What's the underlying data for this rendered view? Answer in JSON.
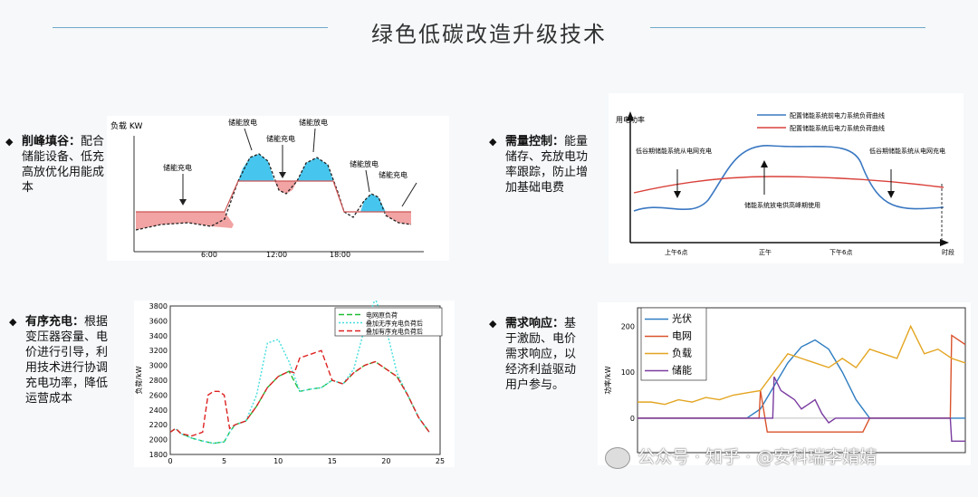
{
  "page": {
    "title": "绿色低碳改造升级技术"
  },
  "items": [
    {
      "id": "peak",
      "heading": "削峰填谷：",
      "body": "配合储能设备、低充高放优化用能成本"
    },
    {
      "id": "demand",
      "heading": "需量控制：",
      "body": "能量储存、充放电功率跟踪，防止增加基础电费"
    },
    {
      "id": "orderly",
      "heading": "有序充电：",
      "body": "根据变压器容量、电价进行引导，利用技术进行协调充电功率，降低运营成本"
    },
    {
      "id": "response",
      "heading": "需求响应：",
      "body": "基于激励、电价需求响应，以经济利益驱动用户参与。"
    }
  ],
  "fig1": {
    "ylabel": "负载 KW",
    "labels": [
      "储能充电",
      "储能放电",
      "储能充电",
      "储能放电",
      "储能放电",
      "储能充电"
    ],
    "xticks": [
      "6:00",
      "12:00",
      "18:00"
    ]
  },
  "fig2": {
    "ylabel": "用电功率",
    "legend": [
      "配置储能系统前电力系统负荷曲线",
      "配置储能系统后电力系统负荷曲线"
    ],
    "notes": [
      "低谷期储能系统从电网充电",
      "储能系统放电供高峰期使用",
      "低谷期储能系统从电网充电"
    ],
    "xticks": [
      "上午6点",
      "正午",
      "下午6点"
    ],
    "xlabel": "时段",
    "colors": {
      "before": "#3a78c2",
      "after": "#d9413a"
    }
  },
  "chart_data": [
    {
      "type": "line",
      "title": "",
      "ylabel": "负荷/kW",
      "xlim": [
        0,
        25
      ],
      "ylim": [
        1800,
        3800
      ],
      "xticks": [
        0,
        5,
        10,
        15,
        20,
        25
      ],
      "yticks": [
        1800,
        2000,
        2200,
        2400,
        2600,
        2800,
        3000,
        3200,
        3400,
        3600,
        3800
      ],
      "legend_position": "top-right",
      "series": [
        {
          "name": "电网原负荷",
          "color": "#22bb33",
          "dash": "6,3",
          "x": [
            0,
            0.5,
            1,
            2,
            3,
            4,
            5,
            5.5,
            6,
            7,
            8,
            9,
            10,
            11,
            12,
            13,
            14,
            15,
            16,
            17,
            18,
            19,
            20,
            21,
            22,
            23,
            24
          ],
          "y": [
            2100,
            2150,
            2080,
            2020,
            1980,
            1950,
            1970,
            2100,
            2200,
            2250,
            2450,
            2700,
            2850,
            2920,
            2650,
            2680,
            2700,
            2800,
            2750,
            2900,
            3000,
            3050,
            2950,
            2850,
            2600,
            2300,
            2100
          ]
        },
        {
          "name": "叠加无序充电负荷后",
          "color": "#44dddd",
          "dash": "2,2",
          "x": [
            0,
            0.5,
            1,
            2,
            3,
            4,
            5,
            5.5,
            6,
            7,
            8,
            9,
            10,
            11,
            12,
            13,
            14,
            15,
            16,
            17,
            18,
            19,
            20,
            21,
            22,
            23,
            24
          ],
          "y": [
            2100,
            2150,
            2080,
            2020,
            1980,
            1950,
            1970,
            2100,
            2200,
            2250,
            2600,
            3300,
            3350,
            3050,
            2650,
            2680,
            2700,
            2800,
            2750,
            2950,
            3500,
            3900,
            3500,
            2900,
            2600,
            2300,
            2100
          ]
        },
        {
          "name": "叠加有序充电负荷后",
          "color": "#dd2222",
          "dash": "6,3",
          "x": [
            0,
            0.5,
            1,
            2,
            3,
            3.5,
            4,
            4.5,
            5,
            5.5,
            6,
            7,
            8,
            9,
            10,
            11,
            11.5,
            12,
            13,
            14,
            15,
            16,
            17,
            18,
            19,
            20,
            21,
            22,
            23,
            24
          ],
          "y": [
            2100,
            2150,
            2080,
            2050,
            2100,
            2600,
            2650,
            2650,
            2600,
            2150,
            2200,
            2250,
            2450,
            2700,
            2850,
            2920,
            2900,
            3100,
            3150,
            3200,
            2800,
            2750,
            2900,
            3000,
            3050,
            2950,
            2850,
            2600,
            2300,
            2100
          ]
        }
      ]
    },
    {
      "type": "line",
      "title": "",
      "ylabel": "功率/kW",
      "xlim": [
        0,
        24
      ],
      "ylim": [
        -75,
        240
      ],
      "yticks": [
        0,
        100,
        200
      ],
      "legend_position": "top-left",
      "series": [
        {
          "name": "光伏",
          "color": "#2f7dc0",
          "x": [
            0,
            8,
            9,
            10,
            11,
            12,
            13,
            14,
            15,
            16,
            17,
            24
          ],
          "y": [
            0,
            0,
            20,
            70,
            120,
            155,
            170,
            150,
            100,
            40,
            0,
            0
          ]
        },
        {
          "name": "电网",
          "color": "#d9532c",
          "x": [
            0,
            8.9,
            9,
            9.5,
            10,
            11,
            12,
            13,
            14,
            15,
            16,
            16.5,
            17,
            22.9,
            23,
            23.5,
            24
          ],
          "y": [
            0,
            0,
            60,
            -30,
            -30,
            -30,
            -30,
            -30,
            -30,
            -30,
            -30,
            -30,
            0,
            0,
            180,
            170,
            160
          ]
        },
        {
          "name": "负载",
          "color": "#e3a521",
          "x": [
            0,
            1,
            2,
            3,
            4,
            5,
            6,
            7,
            8,
            9,
            10,
            11,
            12,
            13,
            14,
            15,
            16,
            17,
            18,
            19,
            20,
            21,
            22,
            23,
            24
          ],
          "y": [
            35,
            35,
            30,
            40,
            35,
            45,
            40,
            50,
            55,
            60,
            100,
            140,
            130,
            120,
            110,
            130,
            110,
            150,
            140,
            130,
            200,
            140,
            150,
            130,
            120
          ]
        },
        {
          "name": "储能",
          "color": "#7a3ca0",
          "x": [
            0,
            9.9,
            10,
            10.5,
            11,
            11.5,
            12,
            12.5,
            13,
            13.5,
            14,
            14.5,
            15,
            22.9,
            23,
            24
          ],
          "y": [
            0,
            0,
            90,
            60,
            50,
            40,
            20,
            30,
            40,
            10,
            -10,
            0,
            0,
            0,
            -50,
            -50
          ]
        }
      ]
    }
  ],
  "watermark": {
    "text": "公众号 · 知乎 · @安科瑞李婧婧"
  }
}
